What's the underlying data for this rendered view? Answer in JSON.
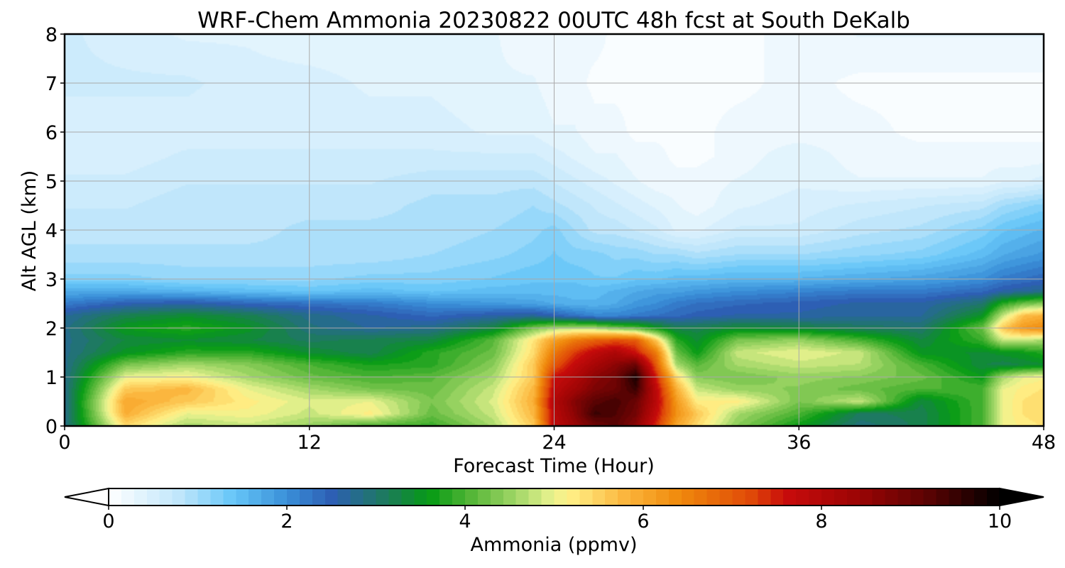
{
  "chart_data": {
    "type": "heatmap",
    "title": "WRF-Chem Ammonia  20230822 00UTC 48h fcst at South DeKalb",
    "xlabel": "Forecast Time (Hour)",
    "ylabel": "Alt AGL (km)",
    "xlim": [
      0,
      48
    ],
    "ylim": [
      0,
      8
    ],
    "x_ticks": [
      0,
      12,
      24,
      36,
      48
    ],
    "y_ticks": [
      0,
      1,
      2,
      3,
      4,
      5,
      6,
      7,
      8
    ],
    "grid": true,
    "x": [
      0,
      3,
      6,
      9,
      12,
      15,
      18,
      21,
      23,
      24,
      25,
      26,
      27,
      28,
      29,
      30,
      31,
      33,
      36,
      39,
      42,
      45,
      46,
      47,
      48
    ],
    "y": [
      0,
      0.25,
      0.5,
      0.75,
      1,
      1.25,
      1.5,
      1.75,
      2,
      2.25,
      2.5,
      2.75,
      3,
      3.5,
      4,
      4.5,
      5,
      5.5,
      6,
      7,
      8
    ],
    "z": [
      [
        2.8,
        5.4,
        4.6,
        4.8,
        4.5,
        4.0,
        3.9,
        4.6,
        5.6,
        7.8,
        8.4,
        8.9,
        9.2,
        8.6,
        7.4,
        6.0,
        5.4,
        4.4,
        3.6,
        2.9,
        3.2,
        4.0,
        5.0,
        5.2,
        5.3
      ],
      [
        2.8,
        5.9,
        5.0,
        5.1,
        4.8,
        5.2,
        4.2,
        4.8,
        5.8,
        7.9,
        8.6,
        9.5,
        9.3,
        8.9,
        7.7,
        6.3,
        5.6,
        4.6,
        4.0,
        3.1,
        3.2,
        4.0,
        5.0,
        5.3,
        5.4
      ],
      [
        2.8,
        6.0,
        5.6,
        5.2,
        4.9,
        5.0,
        4.3,
        4.9,
        5.9,
        8.0,
        8.7,
        9.2,
        9.4,
        9.0,
        7.9,
        6.2,
        5.2,
        5.2,
        4.3,
        4.8,
        3.3,
        4.0,
        5.0,
        5.3,
        5.4
      ],
      [
        2.8,
        5.6,
        5.8,
        5.0,
        4.6,
        4.3,
        4.2,
        4.8,
        5.8,
        7.8,
        8.3,
        8.8,
        9.0,
        9.5,
        7.8,
        5.9,
        4.8,
        4.5,
        4.4,
        4.2,
        4.0,
        4.0,
        5.0,
        5.2,
        5.3
      ],
      [
        2.8,
        5.0,
        5.1,
        4.6,
        4.2,
        4.0,
        4.1,
        4.6,
        5.6,
        7.6,
        8.0,
        8.6,
        8.9,
        9.8,
        7.5,
        5.4,
        4.4,
        4.3,
        4.5,
        4.4,
        4.2,
        3.6,
        4.6,
        5.0,
        5.1
      ],
      [
        2.8,
        4.3,
        4.6,
        4.4,
        4.0,
        3.7,
        3.8,
        4.4,
        5.6,
        7.0,
        7.7,
        8.2,
        8.6,
        9.0,
        7.0,
        4.6,
        4.1,
        4.6,
        4.8,
        4.7,
        4.0,
        3.3,
        3.2,
        3.3,
        3.4
      ],
      [
        2.8,
        3.5,
        3.8,
        3.8,
        3.4,
        3.2,
        3.8,
        4.2,
        5.4,
        6.6,
        7.3,
        7.8,
        8.1,
        7.6,
        6.6,
        4.2,
        3.6,
        4.8,
        5.0,
        4.8,
        3.5,
        3.4,
        3.5,
        3.6,
        3.8
      ],
      [
        2.8,
        3.3,
        3.4,
        3.3,
        3.1,
        3.2,
        3.3,
        4.1,
        5.3,
        6.1,
        6.6,
        6.9,
        7.1,
        7.0,
        5.6,
        3.8,
        3.4,
        4.3,
        4.5,
        4.0,
        3.3,
        3.9,
        4.8,
        4.8,
        4.6
      ],
      [
        2.8,
        3.6,
        3.8,
        3.5,
        2.9,
        2.7,
        2.8,
        3.3,
        4.3,
        4.6,
        4.7,
        4.6,
        4.3,
        4.1,
        3.6,
        3.2,
        3.2,
        3.4,
        3.3,
        3.1,
        3.0,
        4.2,
        5.6,
        6.2,
        6.4
      ],
      [
        2.7,
        3.2,
        3.4,
        3.2,
        2.8,
        2.6,
        2.4,
        2.6,
        2.7,
        2.5,
        2.3,
        2.1,
        2.1,
        2.2,
        2.3,
        2.4,
        2.5,
        2.6,
        2.6,
        2.7,
        2.7,
        3.5,
        4.8,
        5.7,
        5.9
      ],
      [
        2.2,
        2.5,
        2.6,
        2.4,
        2.3,
        2.2,
        2.0,
        1.9,
        1.8,
        1.7,
        1.6,
        1.6,
        1.7,
        1.9,
        2.0,
        2.2,
        2.3,
        2.4,
        2.5,
        2.6,
        2.6,
        3.0,
        3.8,
        4.2,
        4.4
      ],
      [
        1.7,
        1.7,
        1.6,
        1.5,
        1.4,
        1.5,
        1.4,
        1.5,
        1.5,
        1.5,
        1.5,
        1.5,
        1.6,
        1.7,
        1.8,
        1.8,
        1.9,
        2.0,
        2.1,
        2.2,
        2.2,
        2.4,
        2.6,
        2.7,
        2.8
      ],
      [
        1.2,
        1.2,
        1.1,
        1.1,
        1.1,
        1.2,
        1.2,
        1.3,
        1.4,
        1.4,
        1.4,
        1.3,
        1.3,
        1.4,
        1.4,
        1.5,
        1.5,
        1.6,
        1.6,
        1.7,
        1.8,
        2.0,
        2.2,
        2.3,
        2.4
      ],
      [
        0.9,
        0.9,
        0.9,
        0.9,
        0.9,
        0.9,
        1.0,
        1.1,
        1.2,
        1.3,
        1.2,
        1.2,
        1.1,
        1.1,
        1.0,
        1.0,
        0.9,
        1.0,
        1.0,
        1.1,
        1.2,
        1.5,
        1.7,
        1.8,
        1.9
      ],
      [
        0.8,
        0.8,
        0.8,
        0.8,
        0.9,
        0.9,
        0.9,
        1.0,
        1.1,
        1.2,
        1.0,
        0.8,
        0.8,
        0.7,
        0.6,
        0.4,
        0.4,
        0.6,
        0.6,
        0.8,
        0.9,
        1.2,
        1.4,
        1.5,
        1.6
      ],
      [
        0.7,
        0.7,
        0.8,
        0.8,
        0.8,
        0.8,
        0.9,
        0.9,
        1.0,
        0.9,
        0.8,
        0.7,
        0.6,
        0.5,
        0.4,
        0.3,
        0.2,
        0.4,
        0.5,
        0.6,
        0.7,
        0.8,
        1.0,
        1.1,
        1.2
      ],
      [
        0.6,
        0.6,
        0.7,
        0.7,
        0.7,
        0.7,
        0.8,
        0.8,
        0.8,
        0.7,
        0.6,
        0.5,
        0.4,
        0.3,
        0.2,
        0.2,
        0.2,
        0.3,
        0.4,
        0.3,
        0.3,
        0.3,
        0.4,
        0.4,
        0.5
      ],
      [
        0.5,
        0.5,
        0.6,
        0.6,
        0.6,
        0.6,
        0.6,
        0.6,
        0.6,
        0.5,
        0.4,
        0.3,
        0.3,
        0.2,
        0.2,
        0.1,
        0.1,
        0.2,
        0.4,
        0.2,
        0.2,
        0.2,
        0.2,
        0.2,
        0.2
      ],
      [
        0.5,
        0.5,
        0.5,
        0.5,
        0.5,
        0.5,
        0.5,
        0.4,
        0.4,
        0.3,
        0.3,
        0.2,
        0.2,
        0.1,
        0.1,
        0.1,
        0.1,
        0.2,
        0.2,
        0.2,
        0.1,
        0.1,
        0.1,
        0.1,
        0.1
      ],
      [
        0.6,
        0.6,
        0.6,
        0.5,
        0.5,
        0.4,
        0.4,
        0.3,
        0.3,
        0.2,
        0.2,
        0.1,
        0.1,
        0.1,
        0.1,
        0.1,
        0.1,
        0.1,
        0.2,
        0.1,
        0.1,
        0.1,
        0.1,
        0.1,
        0.1
      ],
      [
        0.6,
        0.5,
        0.4,
        0.4,
        0.3,
        0.3,
        0.3,
        0.3,
        0.2,
        0.2,
        0.2,
        0.2,
        0.1,
        0.1,
        0.1,
        0.1,
        0.1,
        0.1,
        0.2,
        0.3,
        0.3,
        0.3,
        0.3,
        0.3,
        0.3
      ]
    ],
    "colorbar": {
      "label": "Ammonia  (ppmv)",
      "min": 0,
      "max": 10,
      "ticks": [
        0,
        2,
        4,
        6,
        8,
        10
      ],
      "extend": "both",
      "orientation": "horizontal",
      "placement": "bottom",
      "stops": [
        {
          "v": 0.0,
          "c": "#ffffff"
        },
        {
          "v": 0.8,
          "c": "#bfe6fb"
        },
        {
          "v": 1.4,
          "c": "#66c6f8"
        },
        {
          "v": 2.0,
          "c": "#3a8fd8"
        },
        {
          "v": 2.5,
          "c": "#2d5fb4"
        },
        {
          "v": 3.1,
          "c": "#1d7a5e"
        },
        {
          "v": 3.6,
          "c": "#059a14"
        },
        {
          "v": 4.1,
          "c": "#5ab83a"
        },
        {
          "v": 4.6,
          "c": "#a5d86a"
        },
        {
          "v": 4.95,
          "c": "#e4f08c"
        },
        {
          "v": 5.15,
          "c": "#fff28a"
        },
        {
          "v": 5.8,
          "c": "#fbb53c"
        },
        {
          "v": 6.4,
          "c": "#f08a0c"
        },
        {
          "v": 7.2,
          "c": "#e04a08"
        },
        {
          "v": 7.6,
          "c": "#c80b0b"
        },
        {
          "v": 8.4,
          "c": "#9c0505"
        },
        {
          "v": 9.2,
          "c": "#5a0303"
        },
        {
          "v": 10.0,
          "c": "#000000"
        }
      ],
      "under_color": "#ffffff",
      "over_color": "#000000"
    }
  }
}
